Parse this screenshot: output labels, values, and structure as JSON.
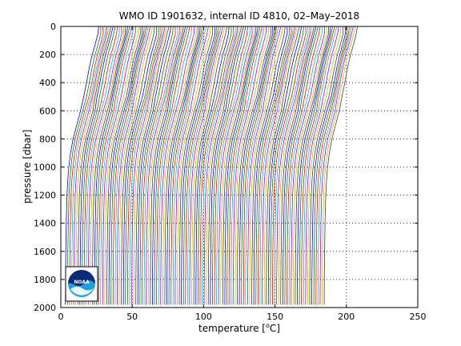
{
  "chart_data": {
    "type": "line",
    "title": "WMO ID 1901632, internal ID 4810, 02–May–2018",
    "xlabel_main": "temperature [",
    "xlabel_unit_sup": "o",
    "xlabel_unit": "C]",
    "ylabel": "pressure [dbar]",
    "xlim": [
      0,
      250
    ],
    "ylim": [
      0,
      2000
    ],
    "y_reversed": true,
    "xticks": [
      0,
      50,
      100,
      150,
      200,
      250
    ],
    "yticks": [
      0,
      200,
      400,
      600,
      800,
      1000,
      1200,
      1400,
      1600,
      1800,
      2000
    ],
    "grid": "dotted",
    "profile_count": 126,
    "profile_offset_step": 1.45,
    "base_profile": {
      "pressure": [
        0,
        50,
        100,
        150,
        200,
        300,
        400,
        500,
        600,
        700,
        800,
        900,
        1000,
        1100,
        1200,
        1400,
        1600,
        1800,
        1980
      ],
      "temperature": [
        26.5,
        26.0,
        24.8,
        23.5,
        22.0,
        19.8,
        18.0,
        16.0,
        13.8,
        11.2,
        8.6,
        6.8,
        5.6,
        4.8,
        4.3,
        3.8,
        3.5,
        3.3,
        3.2
      ]
    },
    "colors": [
      "#0000ff",
      "#008000",
      "#ff0000",
      "#00bfbf",
      "#bf00bf",
      "#bfbf00",
      "#404040"
    ]
  },
  "logo": {
    "name": "NOAA",
    "text": "NOAA"
  }
}
